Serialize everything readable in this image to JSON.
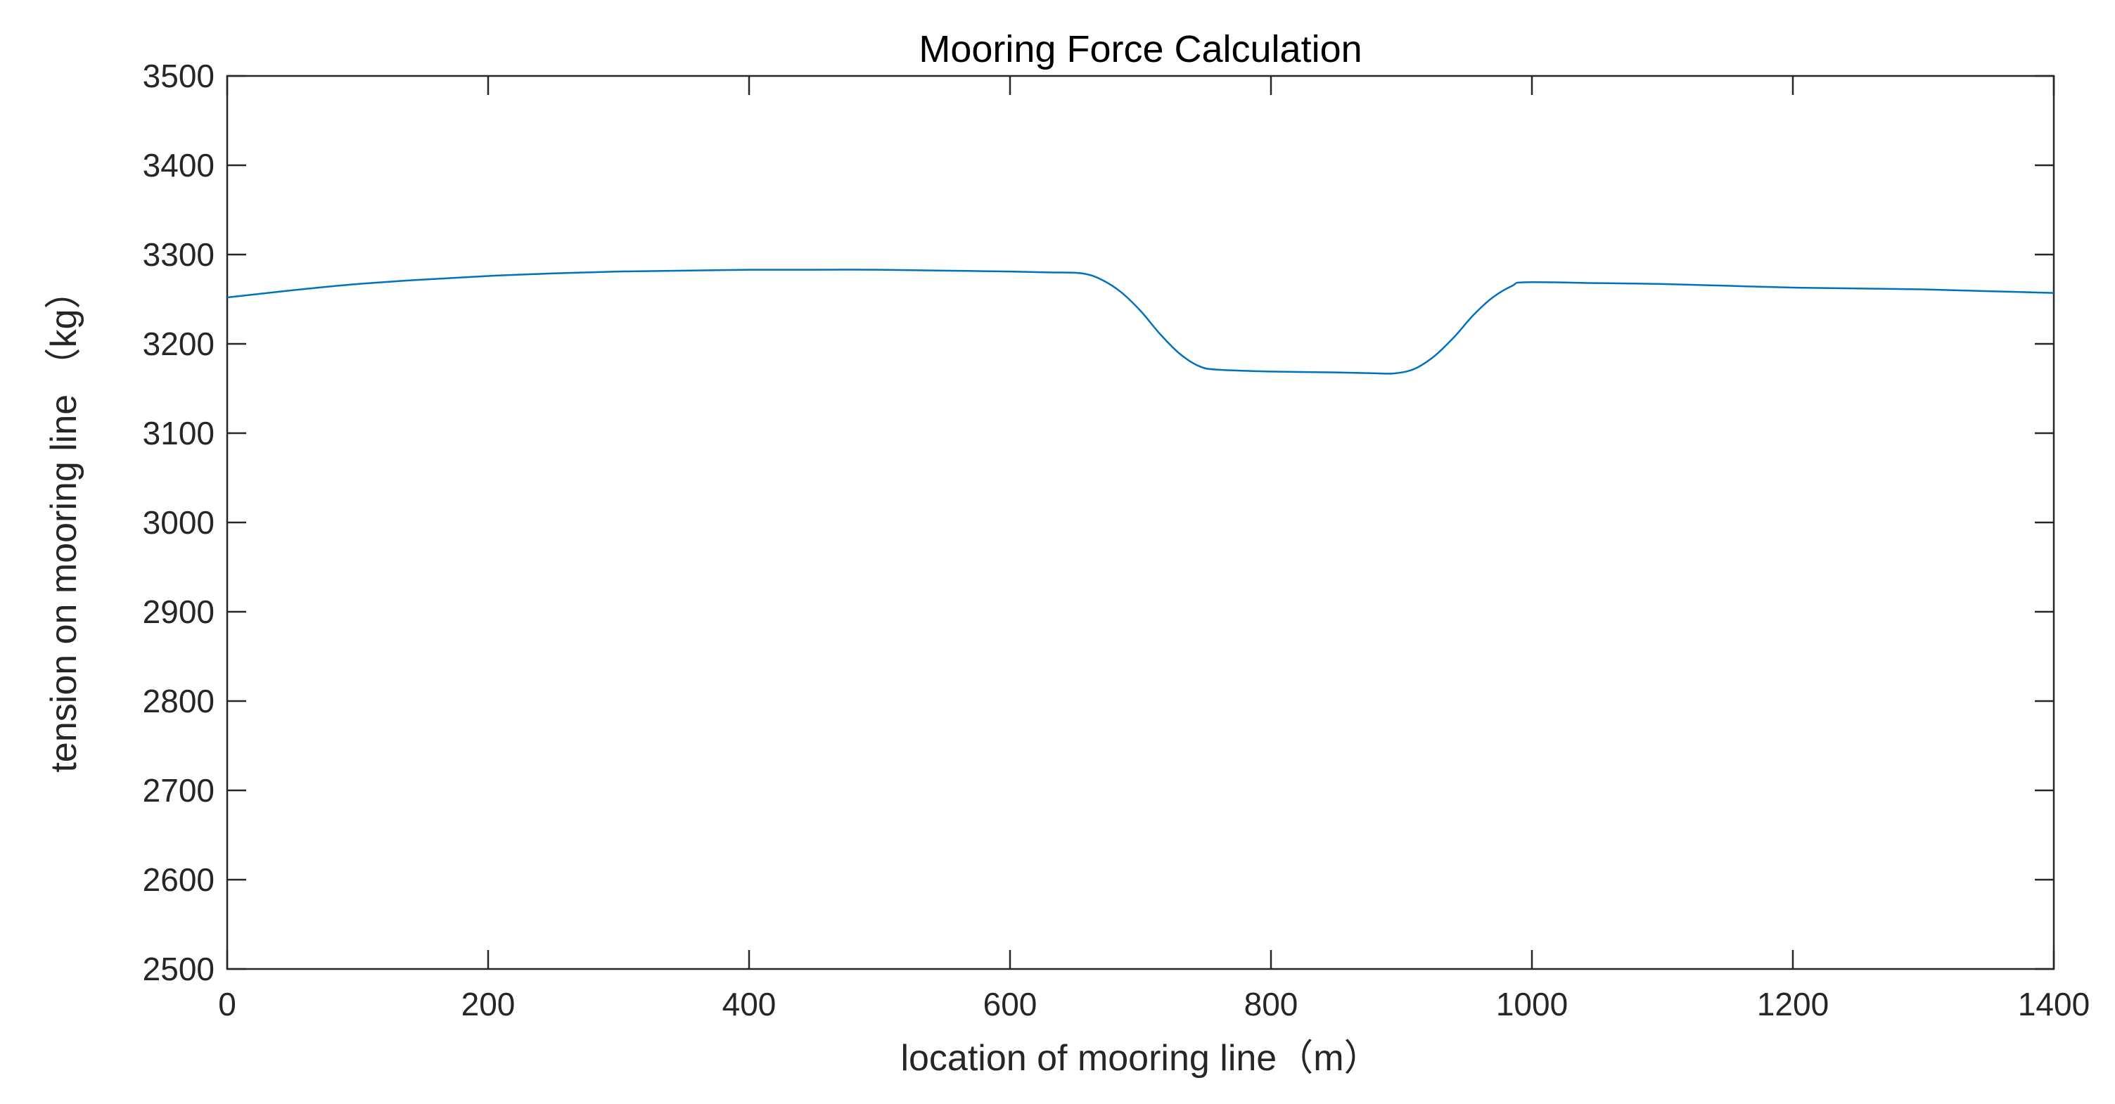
{
  "chart_data": {
    "type": "line",
    "title": "Mooring Force Calculation",
    "xlabel": "location of mooring line（m）",
    "ylabel": "tension on mooring line （kg）",
    "xlim": [
      0,
      1400
    ],
    "ylim": [
      2500,
      3500
    ],
    "xticks": [
      0,
      200,
      400,
      600,
      800,
      1000,
      1200,
      1400
    ],
    "yticks": [
      2500,
      2600,
      2700,
      2800,
      2900,
      3000,
      3100,
      3200,
      3300,
      3400,
      3500
    ],
    "grid": false,
    "box": true,
    "series": [
      {
        "color": "#0072BD",
        "x": [
          0,
          50,
          100,
          150,
          200,
          250,
          300,
          350,
          400,
          450,
          500,
          550,
          600,
          630,
          655,
          670,
          685,
          700,
          715,
          730,
          745,
          760,
          800,
          850,
          880,
          895,
          910,
          925,
          940,
          955,
          970,
          985,
          995,
          1050,
          1100,
          1150,
          1200,
          1250,
          1300,
          1350,
          1400
        ],
        "y": [
          3252,
          3260,
          3267,
          3272,
          3276,
          3279,
          3281,
          3282,
          3283,
          3283,
          3283,
          3282,
          3281,
          3280,
          3279,
          3272,
          3258,
          3237,
          3211,
          3189,
          3175,
          3171,
          3169,
          3168,
          3167,
          3167,
          3172,
          3186,
          3207,
          3232,
          3252,
          3265,
          3269,
          3268,
          3267,
          3265,
          3263,
          3262,
          3261,
          3259,
          3257
        ]
      }
    ]
  }
}
